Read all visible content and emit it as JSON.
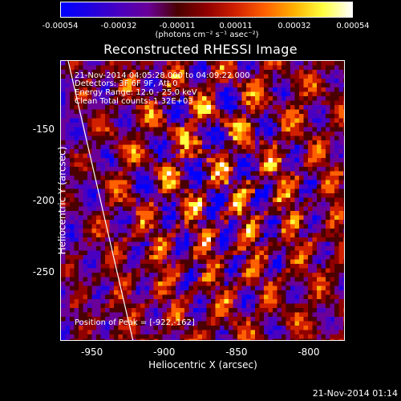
{
  "colorbar": {
    "ticks": [
      "-0.00054",
      "-0.00032",
      "-0.00011",
      "0.00011",
      "0.00032",
      "0.00054"
    ],
    "units": "(photons cm⁻² s⁻¹ asec⁻²)",
    "colors": [
      "#0000ff",
      "#2000e0",
      "#4a00c0",
      "#6a0098",
      "#4a0000",
      "#900000",
      "#d02000",
      "#ff6000",
      "#ffb000",
      "#ffff40",
      "#ffffff"
    ]
  },
  "chart_data": {
    "type": "heatmap",
    "title": "Reconstructed RHESSI Image",
    "xlabel": "Heliocentric X (arcsec)",
    "ylabel": "Heliocentric Y (arcsec)",
    "xlim": [
      -972,
      -775
    ],
    "ylim": [
      -298,
      -102
    ],
    "x_ticks": [
      "-950",
      "-900",
      "-850",
      "-800"
    ],
    "x_tick_values": [
      -950,
      -900,
      -850,
      -800
    ],
    "y_ticks": [
      "-150",
      "-200",
      "-250"
    ],
    "y_tick_values": [
      -150,
      -200,
      -250
    ],
    "value_range": [
      -0.00054,
      0.00054
    ],
    "limb_line": {
      "x": [
        -967,
        -922
      ],
      "y": [
        -102,
        -298
      ]
    },
    "peak_position": [
      -922,
      -162
    ],
    "annotations": [
      "21-Nov-2014 04:05:28.000 to 04:09:22.000",
      "Detectors: 3F 6F 9F, Att 0",
      "Energy Range: 12.0 - 25.0 keV",
      "Clean    Total counts: 1.32E+03"
    ],
    "peak_label": "Position of Peak = [-922,-162]"
  },
  "timestamp": "21-Nov-2014 01:14"
}
